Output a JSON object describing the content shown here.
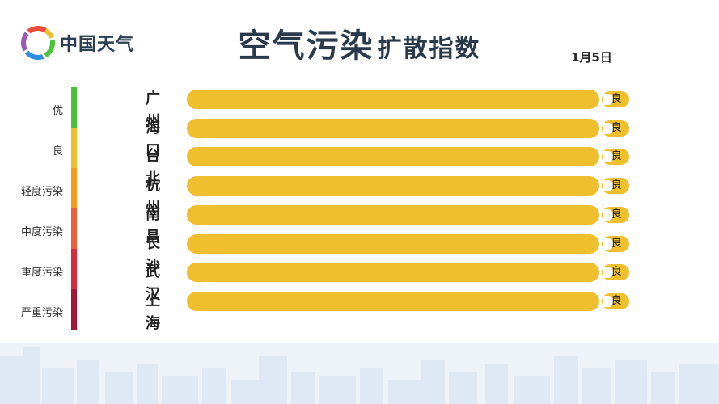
{
  "logo": {
    "text": "中国天气",
    "icon": "china-weather-logo-icon"
  },
  "title": {
    "main": "空气污染",
    "sub": "扩散指数"
  },
  "date": "1月5日",
  "scale": [
    {
      "label": "优",
      "color": "#4cc23a"
    },
    {
      "label": "良",
      "color": "#f0bf2d"
    },
    {
      "label": "轻度污染",
      "color": "#f39c1b"
    },
    {
      "label": "中度污染",
      "color": "#eb5f3a"
    },
    {
      "label": "重度污染",
      "color": "#d62b3f"
    },
    {
      "label": "严重污染",
      "color": "#a31638"
    }
  ],
  "chart_data": {
    "type": "bar",
    "orientation": "horizontal",
    "categories": [
      "广州",
      "海口",
      "台北",
      "杭州",
      "南昌",
      "长沙",
      "武汉",
      "上海"
    ],
    "levels": [
      "良",
      "良",
      "良",
      "良",
      "良",
      "良",
      "良",
      "良"
    ],
    "bar_color": "#f0bf2d"
  }
}
